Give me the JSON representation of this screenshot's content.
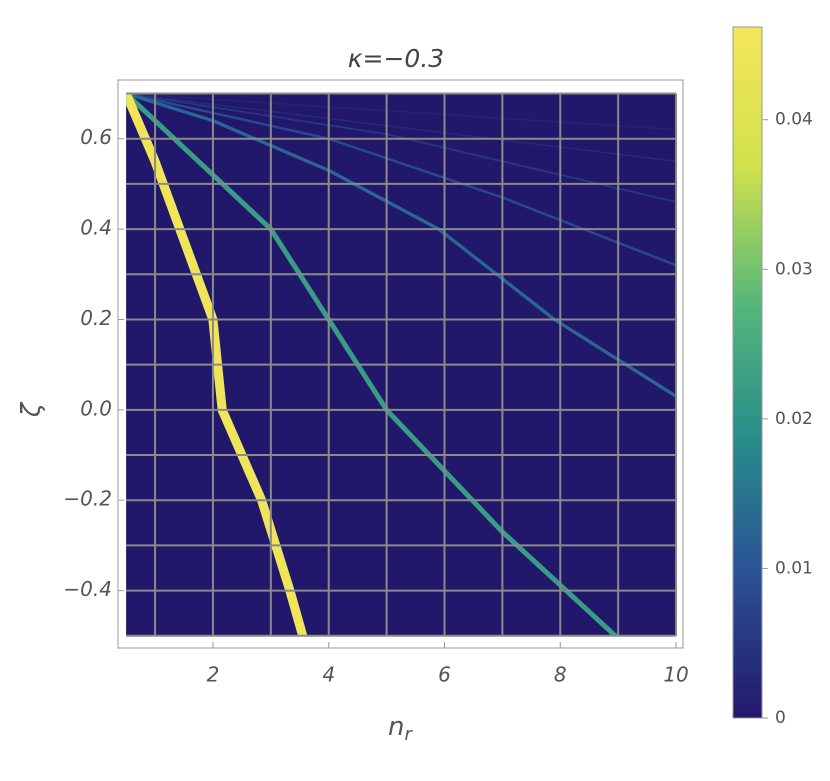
{
  "chart_data": {
    "type": "density",
    "title": "κ=−0.3",
    "xlabel": "n",
    "xlabel_sub": "r",
    "ylabel": "ζ",
    "xlim": [
      0.36,
      10.12
    ],
    "ylim": [
      -0.527,
      0.73
    ],
    "xticks": [
      2,
      4,
      6,
      8,
      10
    ],
    "yticks": [
      {
        "value": -0.4,
        "label": "−0.4"
      },
      {
        "value": -0.2,
        "label": "−0.2"
      },
      {
        "value": 0.0,
        "label": "0.0"
      },
      0.2,
      0.4,
      0.6
    ],
    "extent": {
      "x": [
        0.5,
        10
      ],
      "y": [
        -0.5,
        0.7
      ]
    },
    "xgrid": [
      1,
      2,
      3,
      4,
      5,
      6,
      7,
      8,
      9,
      10
    ],
    "ygrid": [
      -0.5,
      -0.4,
      -0.3,
      -0.2,
      -0.1,
      0.0,
      0.1,
      0.2,
      0.3,
      0.4,
      0.5,
      0.6,
      0.7
    ],
    "grid_color": "#8a8a8a",
    "ridges": [
      {
        "x": [
          0.5,
          1.0,
          2.0,
          2.16,
          2.84,
          3.33,
          3.55
        ],
        "y": [
          0.7,
          0.55,
          0.2,
          0.0,
          -0.2,
          -0.4,
          -0.5
        ],
        "value": 0.045
      },
      {
        "x": [
          0.5,
          3.0,
          5.0,
          7.0,
          8.95
        ],
        "y": [
          0.7,
          0.4,
          0.0,
          -0.27,
          -0.5
        ],
        "value": 0.022
      },
      {
        "x": [
          0.5,
          2.0,
          4.0,
          5.9,
          7.9,
          10.0
        ],
        "y": [
          0.7,
          0.64,
          0.53,
          0.4,
          0.2,
          0.03
        ],
        "value": 0.013
      },
      {
        "x": [
          0.5,
          4.0,
          7.0,
          10.0
        ],
        "y": [
          0.7,
          0.6,
          0.47,
          0.32
        ],
        "value": 0.008
      },
      {
        "x": [
          0.5,
          5.0,
          10.0
        ],
        "y": [
          0.7,
          0.61,
          0.46
        ],
        "value": 0.005
      },
      {
        "x": [
          0.5,
          10.0
        ],
        "y": [
          0.7,
          0.55
        ],
        "value": 0.003
      },
      {
        "x": [
          0.5,
          10.0
        ],
        "y": [
          0.7,
          0.62
        ],
        "value": 0.002
      }
    ],
    "clim": [
      0,
      0.0462
    ],
    "cticks": [
      0,
      0.01,
      0.02,
      0.03,
      0.04
    ],
    "colorscale": [
      "#22186b",
      "#2b4f96",
      "#278b8b",
      "#55b77a",
      "#d2e24c",
      "#f5e65a"
    ]
  }
}
